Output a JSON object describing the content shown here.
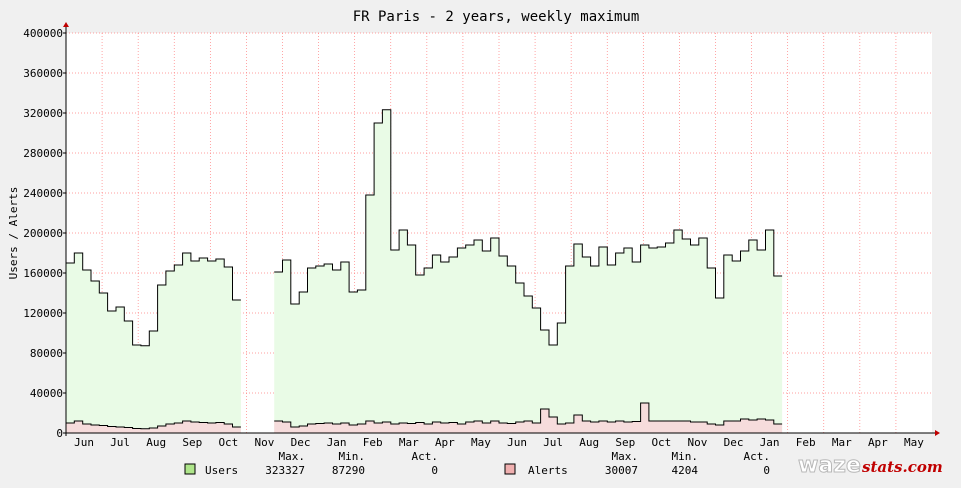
{
  "chart_data": {
    "type": "area",
    "title": "FR Paris - 2 years, weekly maximum",
    "ylabel": "Users / Alerts",
    "xlabel": "",
    "ylim": [
      0,
      400000
    ],
    "y_ticks": [
      0,
      40000,
      80000,
      120000,
      160000,
      200000,
      240000,
      280000,
      320000,
      360000,
      400000
    ],
    "x_ticks": [
      "Jun",
      "Jul",
      "Aug",
      "Sep",
      "Oct",
      "Nov",
      "Dec",
      "Jan",
      "Feb",
      "Mar",
      "Apr",
      "May",
      "Jun",
      "Jul",
      "Aug",
      "Sep",
      "Oct",
      "Nov",
      "Dec",
      "Jan",
      "Feb",
      "Mar",
      "Apr",
      "May"
    ],
    "x_range_weeks": [
      0,
      104
    ],
    "grid": true,
    "legend": "bottom",
    "series": [
      {
        "name": "Users",
        "color": "#000000",
        "fill": "#e9fbe6",
        "swatch": "#aee58a",
        "stats": {
          "max": "323327",
          "min": "87290",
          "act": "0"
        },
        "segments": [
          {
            "start_week": 0,
            "values": [
              170000,
              180000,
              163000,
              152000,
              140000,
              122000,
              126000,
              112000,
              88000,
              87290,
              102000,
              148000,
              162000,
              168000,
              180000,
              172000,
              175000,
              172000,
              174000,
              166000,
              133000
            ]
          },
          {
            "start_week": 25,
            "values": [
              161000,
              173000,
              129000,
              141000,
              165000,
              167000,
              169000,
              163000,
              171000,
              141000,
              143000,
              238000,
              310000,
              323327,
              183000,
              203000,
              188000,
              158000,
              165000,
              178000,
              171000,
              176000,
              185000,
              188000,
              193000,
              182000,
              195000,
              177000,
              167000,
              150000,
              137000,
              125000,
              103000,
              88000,
              110000,
              167000,
              189000,
              176000,
              167000,
              186000,
              168000,
              180000,
              185000,
              171000,
              188000,
              185000,
              186000,
              190000,
              203000,
              194000,
              188000,
              195000,
              165000,
              135000,
              178000,
              172000,
              182000,
              193000,
              183000,
              203000,
              157000
            ]
          }
        ]
      },
      {
        "name": "Alerts",
        "color": "#000000",
        "fill": "#f6dcdc",
        "swatch": "#f0b0b0",
        "stats": {
          "max": "30007",
          "min": "4204",
          "act": "0"
        },
        "segments": [
          {
            "start_week": 0,
            "values": [
              10000,
              12000,
              9000,
              8000,
              7500,
              6500,
              6000,
              5500,
              4500,
              4204,
              5000,
              7000,
              9000,
              10000,
              12000,
              11000,
              10500,
              10000,
              10500,
              9000,
              6000
            ]
          },
          {
            "start_week": 25,
            "values": [
              12000,
              11000,
              6000,
              7000,
              9000,
              9500,
              10000,
              9000,
              10000,
              8000,
              9000,
              12000,
              10000,
              11000,
              9000,
              10000,
              9500,
              10500,
              9000,
              11000,
              10000,
              10500,
              9000,
              11000,
              12000,
              10000,
              12000,
              10000,
              9500,
              11000,
              12000,
              10000,
              24000,
              16000,
              9000,
              10000,
              18000,
              12000,
              11000,
              12000,
              11000,
              12000,
              11000,
              11500,
              30007,
              12000,
              12000,
              12000,
              12000,
              12000,
              11000,
              11000,
              9000,
              8000,
              12000,
              12000,
              14000,
              13000,
              14000,
              13000,
              9000
            ]
          }
        ]
      }
    ],
    "legend_headers": {
      "max": "Max.",
      "min": "Min.",
      "act": "Act."
    }
  },
  "branding": {
    "logo_part1": "waze",
    "logo_part2": "stats.com",
    "accent": "#c00000",
    "grid_color": "#ff8080"
  }
}
